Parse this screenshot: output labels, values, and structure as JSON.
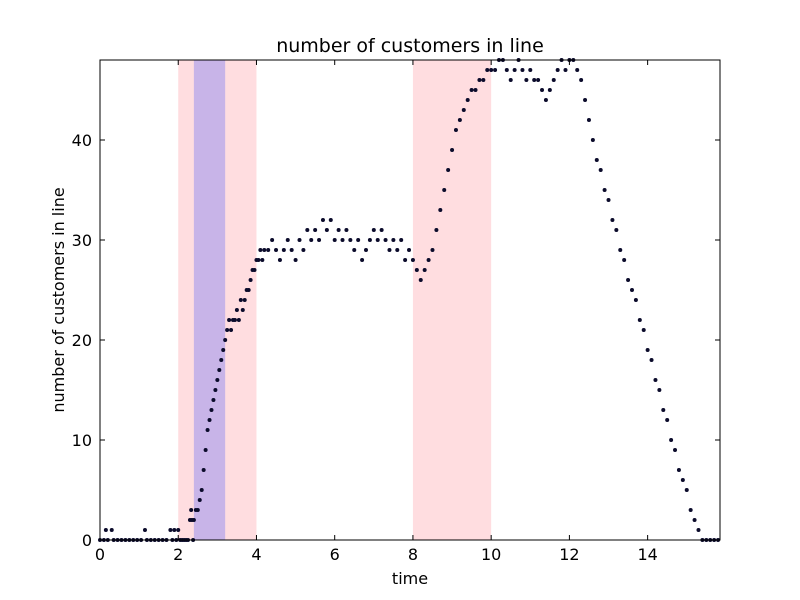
{
  "chart_data": {
    "type": "scatter",
    "title": "number of customers in line",
    "xlabel": "time",
    "ylabel": "number of customers in line",
    "xlim": [
      0,
      15.85
    ],
    "ylim": [
      0,
      48
    ],
    "xticks": [
      "0",
      "2",
      "4",
      "6",
      "8",
      "10",
      "12",
      "14"
    ],
    "yticks": [
      "0",
      "10",
      "20",
      "30",
      "40"
    ],
    "grid": false,
    "point_color": "#0b0b2b",
    "highlight_spans": [
      {
        "x0": 2.0,
        "x1": 4.0,
        "color": "#ffdde0"
      },
      {
        "x0": 2.4,
        "x1": 3.2,
        "color": "#c8b4e8"
      },
      {
        "x0": 8.0,
        "x1": 10.0,
        "color": "#ffdde0"
      }
    ],
    "series": [
      {
        "values": [
          [
            0.0,
            0
          ],
          [
            0.1,
            0
          ],
          [
            0.15,
            1
          ],
          [
            0.2,
            0
          ],
          [
            0.3,
            1
          ],
          [
            0.35,
            0
          ],
          [
            0.45,
            0
          ],
          [
            0.55,
            0
          ],
          [
            0.65,
            0
          ],
          [
            0.75,
            0
          ],
          [
            0.85,
            0
          ],
          [
            0.95,
            0
          ],
          [
            1.05,
            0
          ],
          [
            1.15,
            1
          ],
          [
            1.2,
            0
          ],
          [
            1.3,
            0
          ],
          [
            1.4,
            0
          ],
          [
            1.5,
            0
          ],
          [
            1.6,
            0
          ],
          [
            1.7,
            0
          ],
          [
            1.8,
            1
          ],
          [
            1.85,
            0
          ],
          [
            1.9,
            1
          ],
          [
            1.95,
            0
          ],
          [
            2.0,
            1
          ],
          [
            2.05,
            0
          ],
          [
            2.1,
            0
          ],
          [
            2.15,
            0
          ],
          [
            2.2,
            0
          ],
          [
            2.25,
            0
          ],
          [
            2.3,
            2
          ],
          [
            2.33,
            3
          ],
          [
            2.35,
            2
          ],
          [
            2.38,
            0
          ],
          [
            2.4,
            2
          ],
          [
            2.45,
            3
          ],
          [
            2.5,
            3
          ],
          [
            2.55,
            4
          ],
          [
            2.6,
            5
          ],
          [
            2.65,
            7
          ],
          [
            2.7,
            9
          ],
          [
            2.75,
            11
          ],
          [
            2.8,
            12
          ],
          [
            2.85,
            13
          ],
          [
            2.9,
            14
          ],
          [
            2.95,
            15
          ],
          [
            3.0,
            16
          ],
          [
            3.05,
            17
          ],
          [
            3.1,
            18
          ],
          [
            3.15,
            19
          ],
          [
            3.2,
            20
          ],
          [
            3.25,
            21
          ],
          [
            3.3,
            22
          ],
          [
            3.35,
            21
          ],
          [
            3.4,
            22
          ],
          [
            3.45,
            22
          ],
          [
            3.5,
            23
          ],
          [
            3.55,
            22
          ],
          [
            3.6,
            24
          ],
          [
            3.65,
            23
          ],
          [
            3.7,
            24
          ],
          [
            3.75,
            25
          ],
          [
            3.8,
            25
          ],
          [
            3.85,
            26
          ],
          [
            3.9,
            27
          ],
          [
            3.95,
            27
          ],
          [
            4.0,
            28
          ],
          [
            4.05,
            28
          ],
          [
            4.1,
            29
          ],
          [
            4.15,
            28
          ],
          [
            4.2,
            29
          ],
          [
            4.3,
            29
          ],
          [
            4.4,
            30
          ],
          [
            4.5,
            29
          ],
          [
            4.6,
            28
          ],
          [
            4.7,
            29
          ],
          [
            4.8,
            30
          ],
          [
            4.9,
            29
          ],
          [
            5.0,
            28
          ],
          [
            5.1,
            30
          ],
          [
            5.2,
            29
          ],
          [
            5.3,
            31
          ],
          [
            5.4,
            30
          ],
          [
            5.5,
            31
          ],
          [
            5.6,
            30
          ],
          [
            5.7,
            32
          ],
          [
            5.8,
            31
          ],
          [
            5.9,
            32
          ],
          [
            6.0,
            30
          ],
          [
            6.1,
            31
          ],
          [
            6.2,
            30
          ],
          [
            6.3,
            31
          ],
          [
            6.4,
            30
          ],
          [
            6.5,
            29
          ],
          [
            6.6,
            30
          ],
          [
            6.7,
            28
          ],
          [
            6.8,
            29
          ],
          [
            6.9,
            30
          ],
          [
            7.0,
            31
          ],
          [
            7.1,
            30
          ],
          [
            7.2,
            31
          ],
          [
            7.3,
            30
          ],
          [
            7.4,
            29
          ],
          [
            7.5,
            30
          ],
          [
            7.6,
            29
          ],
          [
            7.7,
            30
          ],
          [
            7.8,
            28
          ],
          [
            7.9,
            29
          ],
          [
            8.0,
            28
          ],
          [
            8.1,
            27
          ],
          [
            8.2,
            26
          ],
          [
            8.3,
            27
          ],
          [
            8.4,
            28
          ],
          [
            8.5,
            29
          ],
          [
            8.6,
            31
          ],
          [
            8.7,
            33
          ],
          [
            8.8,
            35
          ],
          [
            8.9,
            37
          ],
          [
            9.0,
            39
          ],
          [
            9.1,
            41
          ],
          [
            9.2,
            42
          ],
          [
            9.3,
            43
          ],
          [
            9.4,
            44
          ],
          [
            9.5,
            45
          ],
          [
            9.6,
            45
          ],
          [
            9.7,
            46
          ],
          [
            9.8,
            46
          ],
          [
            9.9,
            47
          ],
          [
            10.0,
            47
          ],
          [
            10.1,
            47
          ],
          [
            10.2,
            48
          ],
          [
            10.3,
            48
          ],
          [
            10.4,
            47
          ],
          [
            10.5,
            46
          ],
          [
            10.6,
            47
          ],
          [
            10.7,
            48
          ],
          [
            10.8,
            47
          ],
          [
            10.9,
            46
          ],
          [
            11.0,
            47
          ],
          [
            11.1,
            46
          ],
          [
            11.2,
            46
          ],
          [
            11.3,
            45
          ],
          [
            11.4,
            44
          ],
          [
            11.5,
            45
          ],
          [
            11.6,
            46
          ],
          [
            11.7,
            47
          ],
          [
            11.8,
            48
          ],
          [
            11.9,
            47
          ],
          [
            12.0,
            48
          ],
          [
            12.1,
            48
          ],
          [
            12.2,
            47
          ],
          [
            12.3,
            46
          ],
          [
            12.4,
            44
          ],
          [
            12.5,
            42
          ],
          [
            12.6,
            40
          ],
          [
            12.7,
            38
          ],
          [
            12.8,
            37
          ],
          [
            12.9,
            35
          ],
          [
            13.0,
            34
          ],
          [
            13.1,
            32
          ],
          [
            13.2,
            31
          ],
          [
            13.3,
            29
          ],
          [
            13.4,
            28
          ],
          [
            13.5,
            26
          ],
          [
            13.6,
            25
          ],
          [
            13.7,
            24
          ],
          [
            13.8,
            22
          ],
          [
            13.9,
            21
          ],
          [
            14.0,
            19
          ],
          [
            14.1,
            18
          ],
          [
            14.2,
            16
          ],
          [
            14.3,
            15
          ],
          [
            14.4,
            13
          ],
          [
            14.5,
            12
          ],
          [
            14.6,
            10
          ],
          [
            14.7,
            9
          ],
          [
            14.8,
            7
          ],
          [
            14.9,
            6
          ],
          [
            15.0,
            5
          ],
          [
            15.1,
            3
          ],
          [
            15.2,
            2
          ],
          [
            15.3,
            1
          ],
          [
            15.4,
            0
          ],
          [
            15.5,
            0
          ],
          [
            15.6,
            0
          ],
          [
            15.7,
            0
          ],
          [
            15.8,
            0
          ]
        ]
      }
    ]
  }
}
